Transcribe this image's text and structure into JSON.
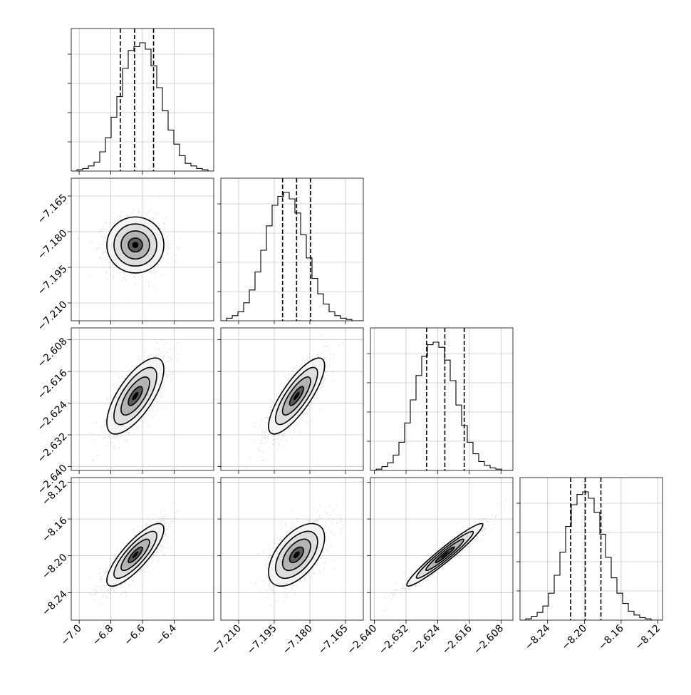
{
  "chart_data": {
    "type": "corner",
    "parameters": [
      {
        "range": [
          -7.05,
          -6.15
        ],
        "ticks": [
          -7.0,
          -6.8,
          -6.6,
          -6.4
        ],
        "tick_labels": [
          "−7.0",
          "−6.8",
          "−6.6",
          "−6.4"
        ],
        "quantiles": [
          -6.74,
          -6.65,
          -6.53
        ],
        "mean": -6.645,
        "sd": 0.09
      },
      {
        "range": [
          -7.2175,
          -7.1575
        ],
        "ticks": [
          -7.21,
          -7.195,
          -7.18,
          -7.165
        ],
        "tick_labels": [
          "−7.210",
          "−7.195",
          "−7.180",
          "−7.165"
        ],
        "quantiles": [
          -7.1915,
          -7.1856,
          -7.1797
        ],
        "mean": -7.1856,
        "sd": 0.0059
      },
      {
        "range": [
          -2.641,
          -2.605
        ],
        "ticks": [
          -2.64,
          -2.632,
          -2.624,
          -2.616,
          -2.608
        ],
        "tick_labels": [
          "−2.640",
          "−2.632",
          "−2.624",
          "−2.616",
          "−2.608"
        ],
        "quantiles": [
          -2.6268,
          -2.6222,
          -2.6173
        ],
        "mean": -2.6222,
        "sd": 0.0048
      },
      {
        "range": [
          -8.27,
          -8.115
        ],
        "ticks": [
          -8.24,
          -8.2,
          -8.16,
          -8.12
        ],
        "tick_labels": [
          "−8.24",
          "−8.20",
          "−8.16",
          "−8.12"
        ],
        "quantiles": [
          -8.215,
          -8.199,
          -8.182
        ],
        "mean": -8.199,
        "sd": 0.017
      }
    ],
    "histograms": [
      [
        0.0,
        0.01,
        0.02,
        0.04,
        0.07,
        0.15,
        0.26,
        0.42,
        0.58,
        0.8,
        0.94,
        0.97,
        1.0,
        0.95,
        0.82,
        0.65,
        0.47,
        0.32,
        0.21,
        0.12,
        0.06,
        0.04,
        0.02,
        0.01,
        0.0
      ],
      [
        0.0,
        0.02,
        0.04,
        0.07,
        0.14,
        0.24,
        0.38,
        0.55,
        0.74,
        0.9,
        0.97,
        1.0,
        0.95,
        0.84,
        0.67,
        0.49,
        0.33,
        0.21,
        0.13,
        0.07,
        0.04,
        0.02,
        0.01,
        0.0,
        0.0
      ],
      [
        0.0,
        0.01,
        0.03,
        0.06,
        0.12,
        0.22,
        0.37,
        0.55,
        0.74,
        0.89,
        0.98,
        1.0,
        0.96,
        0.86,
        0.7,
        0.51,
        0.35,
        0.22,
        0.13,
        0.07,
        0.04,
        0.02,
        0.01,
        0.0,
        0.0
      ],
      [
        0.0,
        0.01,
        0.03,
        0.06,
        0.11,
        0.21,
        0.35,
        0.53,
        0.73,
        0.9,
        0.98,
        1.0,
        0.95,
        0.84,
        0.67,
        0.49,
        0.33,
        0.21,
        0.13,
        0.07,
        0.04,
        0.02,
        0.01,
        0.0,
        0.0
      ]
    ],
    "correlations": [
      [
        1,
        0,
        0.7,
        0.82
      ],
      [
        0,
        1,
        0.8,
        0.55
      ],
      [
        0.7,
        0.8,
        1,
        0.96
      ],
      [
        0.82,
        0.55,
        0.96,
        1
      ]
    ],
    "contour_levels_sigma": [
      0.5,
      1.0,
      1.5,
      2.0
    ],
    "title": "",
    "xlabel": "",
    "ylabel": "",
    "grid": true,
    "colors": {
      "ink": "#000000",
      "grid": "#b0b0b0",
      "points": "#7a7a7a",
      "density_light": "#d9d9d9",
      "density_dark": "#000000"
    }
  }
}
